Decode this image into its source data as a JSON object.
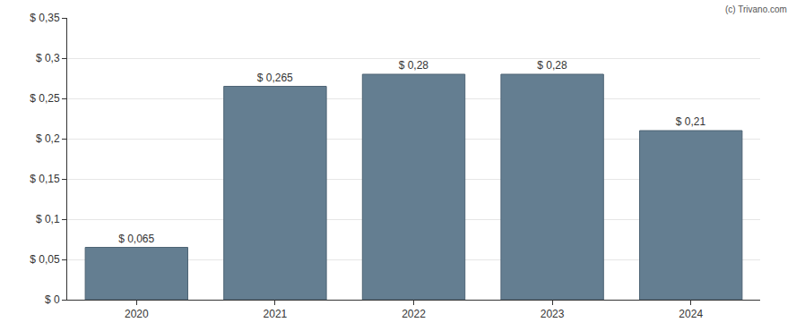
{
  "chart_data": {
    "type": "bar",
    "categories": [
      "2020",
      "2021",
      "2022",
      "2023",
      "2024"
    ],
    "values": [
      0.065,
      0.265,
      0.28,
      0.28,
      0.21
    ],
    "value_labels": [
      "$ 0,065",
      "$ 0,265",
      "$ 0,28",
      "$ 0,28",
      "$ 0,21"
    ],
    "data_labels": true,
    "color": "#647e91",
    "ylim": [
      0,
      0.35
    ],
    "yticks": [
      {
        "value": 0,
        "label": "$ 0"
      },
      {
        "value": 0.05,
        "label": "$ 0,05"
      },
      {
        "value": 0.1,
        "label": "$ 0,1"
      },
      {
        "value": 0.15,
        "label": "$ 0,15"
      },
      {
        "value": 0.2,
        "label": "$ 0,2"
      },
      {
        "value": 0.25,
        "label": "$ 0,25"
      },
      {
        "value": 0.3,
        "label": "$ 0,3"
      },
      {
        "value": 0.35,
        "label": "$ 0,35"
      }
    ],
    "grid": true,
    "annotations": [
      "(c) Trivano.com"
    ]
  }
}
